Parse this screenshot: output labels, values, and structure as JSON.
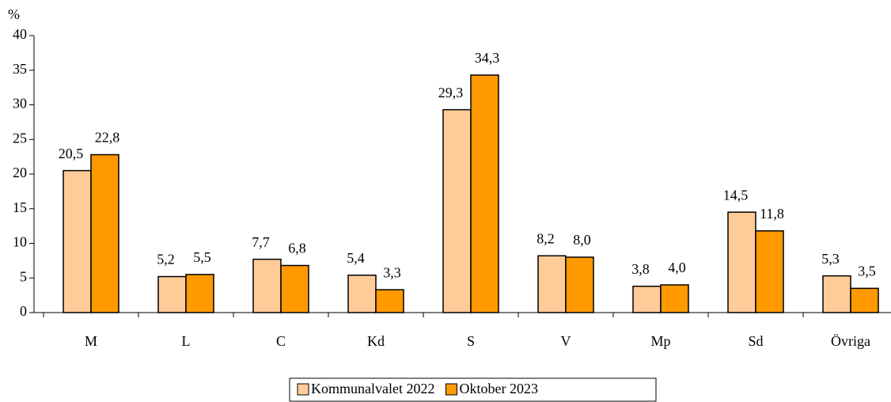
{
  "chart_data": {
    "type": "bar",
    "y_label": "%",
    "categories": [
      "M",
      "L",
      "C",
      "Kd",
      "S",
      "V",
      "Mp",
      "Sd",
      "Övriga"
    ],
    "series": [
      {
        "name": "Kommunalvalet 2022",
        "color": "#ffcc99",
        "values": [
          20.5,
          5.2,
          7.7,
          5.4,
          29.3,
          8.2,
          3.8,
          14.5,
          5.3
        ],
        "value_labels": [
          "20,5",
          "5,2",
          "7,7",
          "5,4",
          "29,3",
          "8,2",
          "3,8",
          "14,5",
          "5,3"
        ]
      },
      {
        "name": "Oktober 2023",
        "color": "#ff9900",
        "values": [
          22.8,
          5.5,
          6.8,
          3.3,
          34.3,
          8.0,
          4.0,
          11.8,
          3.5
        ],
        "value_labels": [
          "22,8",
          "5,5",
          "6,8",
          "3,3",
          "34,3",
          "8,0",
          "4,0",
          "11,8",
          "3,5"
        ]
      }
    ],
    "ylim": [
      0,
      40
    ],
    "yticks": [
      0,
      5,
      10,
      15,
      20,
      25,
      30,
      35,
      40
    ],
    "legend": "bottom"
  }
}
